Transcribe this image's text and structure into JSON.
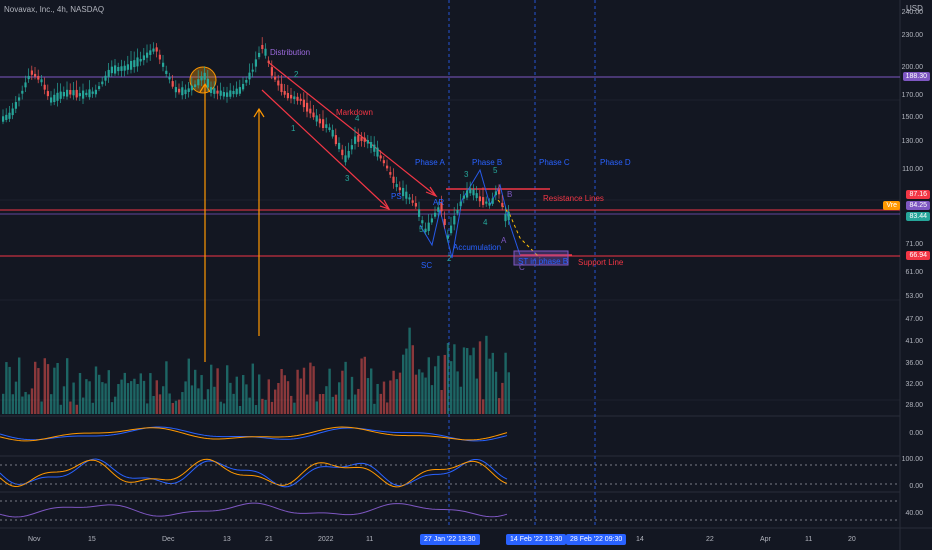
{
  "header": {
    "symbol": "Novavax, Inc., 4h, NASDAQ",
    "currency": "USD"
  },
  "price_axis": [
    "240.00",
    "230.00",
    "200.00",
    "170.00",
    "150.00",
    "130.00",
    "110.00",
    "71.00",
    "61.00",
    "53.00",
    "47.00",
    "41.00",
    "36.00",
    "32.00",
    "28.00"
  ],
  "price_tags": {
    "top": "188.30",
    "resist": "87.16",
    "vwap_label": "Vre",
    "vwap": "84.25",
    "current": "83.44",
    "support": "66.94"
  },
  "indicator_axis": {
    "macd": "0.00",
    "stoch_top": "100.00",
    "stoch_bottom": "0.00",
    "rsi": "40.00"
  },
  "time_axis": [
    "Nov",
    "15",
    "Dec",
    "13",
    "21",
    "2022",
    "11",
    "14",
    "22",
    "Apr",
    "11",
    "20"
  ],
  "date_pills": [
    "27 Jan '22 13:30",
    "14 Feb '22 13:30",
    "28 Feb '22 09:30"
  ],
  "annotations": {
    "distribution": "Distribution",
    "markdown": "Markdown",
    "phase_a": "Phase A",
    "phase_b": "Phase B",
    "phase_c": "Phase C",
    "phase_d": "Phase D",
    "resistance": "Resistance Lines",
    "support": "Support Line",
    "accumulation": "Accumulation",
    "st_phase_b": "ST in phase B",
    "ps": "PS",
    "ar": "AR",
    "sc": "SC",
    "w1": "1",
    "w2": "2",
    "w3": "3",
    "w4": "4",
    "w5": "5",
    "b3": "3",
    "b5": "5",
    "b4": "4",
    "b2": "2",
    "bB": "B",
    "bA": "A",
    "bC": "C",
    "b5left": "5"
  },
  "colors": {
    "background": "#131722",
    "up": "#26a69a",
    "down": "#ef5350",
    "resist_line": "#f23645",
    "support_line": "#f23645",
    "level_line": "#7e57c2",
    "blue": "#2962ff"
  }
}
